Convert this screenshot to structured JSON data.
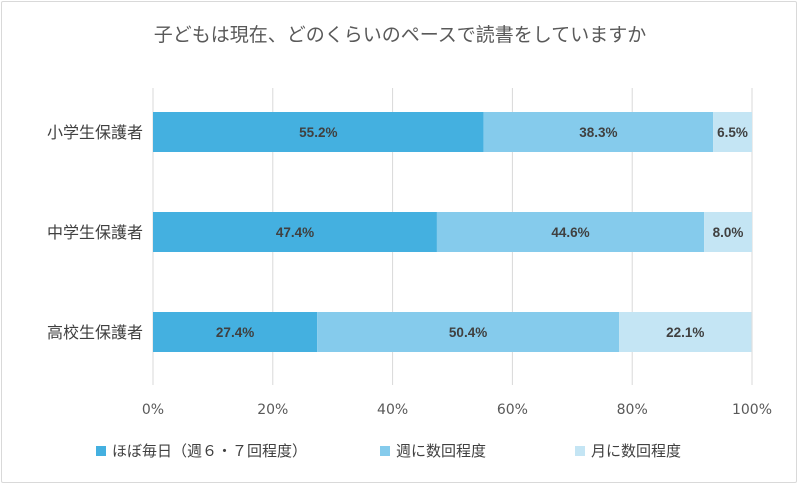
{
  "chart_data": {
    "type": "bar",
    "orientation": "horizontal",
    "stacked": true,
    "percent": true,
    "title": "子どもは現在、どのくらいのペースで読書をしていますか",
    "categories": [
      "小学生保護者",
      "中学生保護者",
      "高校生保護者"
    ],
    "series": [
      {
        "name": "ほぼ毎日（週６・７回程度）",
        "values": [
          55.2,
          47.4,
          27.4
        ],
        "color": "#44b0e0"
      },
      {
        "name": "週に数回程度",
        "values": [
          38.3,
          44.6,
          50.4
        ],
        "color": "#85cbec"
      },
      {
        "name": "月に数回程度",
        "values": [
          6.5,
          8.0,
          22.1
        ],
        "color": "#c4e5f4"
      }
    ],
    "value_suffix": "%",
    "xlim": [
      0,
      100
    ],
    "xticks": [
      "0%",
      "20%",
      "40%",
      "60%",
      "80%",
      "100%"
    ],
    "grid": true,
    "legend_position": "bottom"
  }
}
